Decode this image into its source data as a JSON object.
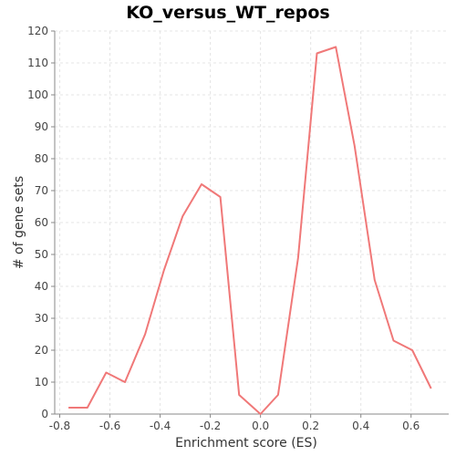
{
  "chart_data": {
    "type": "line",
    "title": "KO_versus_WT_repos",
    "xlabel": "Enrichment score (ES)",
    "ylabel": "# of gene sets",
    "xlim": [
      -0.82,
      0.75
    ],
    "ylim": [
      0,
      120
    ],
    "x_ticks": [
      -0.8,
      -0.6,
      -0.4,
      -0.2,
      0.0,
      0.2,
      0.4,
      0.6
    ],
    "x_tick_labels": [
      "-0.8",
      "-0.6",
      "-0.4",
      "-0.2",
      "0.0",
      "0.2",
      "0.4",
      "0.6"
    ],
    "y_ticks": [
      0,
      10,
      20,
      30,
      40,
      50,
      60,
      70,
      80,
      90,
      100,
      110,
      120
    ],
    "y_tick_labels": [
      "0",
      "10",
      "20",
      "30",
      "40",
      "50",
      "60",
      "70",
      "80",
      "90",
      "100",
      "110",
      "120"
    ],
    "grid": true,
    "legend": "none",
    "series": [
      {
        "color": "#f07878",
        "x": [
          -0.765,
          -0.69,
          -0.615,
          -0.54,
          -0.46,
          -0.385,
          -0.31,
          -0.235,
          -0.16,
          -0.085,
          0.0,
          0.07,
          0.15,
          0.225,
          0.3,
          0.375,
          0.455,
          0.53,
          0.605,
          0.68
        ],
        "y": [
          2,
          2,
          13,
          10,
          25,
          45,
          62,
          72,
          68,
          6,
          0,
          6,
          49,
          113,
          115,
          84,
          42,
          23,
          20,
          8
        ]
      }
    ]
  }
}
